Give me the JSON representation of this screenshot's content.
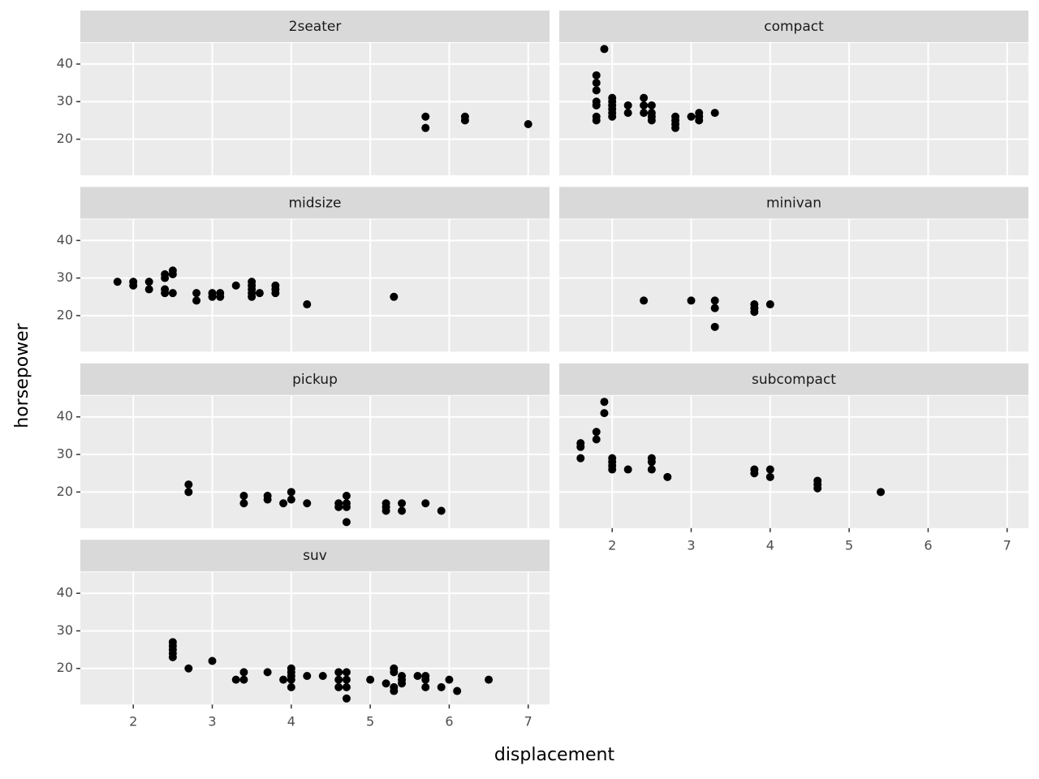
{
  "chart_data": {
    "type": "scatter",
    "x_label": "displacement",
    "y_label": "horsepower",
    "xlim": [
      1.33,
      7.27
    ],
    "ylim": [
      10.4,
      45.6
    ],
    "xticks": [
      2,
      3,
      4,
      5,
      6,
      7
    ],
    "yticks": [
      20,
      30,
      40
    ],
    "color": "#000000",
    "grid": true,
    "facets": [
      {
        "title": "2seater",
        "x": [
          5.7,
          5.7,
          6.2,
          6.2,
          7.0
        ],
        "y": [
          26,
          23,
          26,
          25,
          24
        ]
      },
      {
        "title": "compact",
        "x": [
          1.8,
          1.8,
          1.8,
          1.8,
          1.8,
          1.8,
          1.8,
          1.9,
          2.0,
          2.0,
          2.0,
          2.0,
          2.0,
          2.0,
          2.2,
          2.2,
          2.4,
          2.4,
          2.4,
          2.5,
          2.5,
          2.5,
          2.5,
          2.8,
          2.8,
          2.8,
          2.8,
          3.0,
          3.1,
          3.1,
          3.1,
          3.3
        ],
        "y": [
          25,
          26,
          29,
          30,
          33,
          35,
          37,
          44,
          26,
          27,
          28,
          29,
          30,
          31,
          27,
          29,
          27,
          29,
          31,
          25,
          26,
          27,
          29,
          23,
          24,
          25,
          26,
          26,
          25,
          26,
          27,
          27
        ]
      },
      {
        "title": "midsize",
        "x": [
          1.8,
          2.0,
          2.0,
          2.2,
          2.2,
          2.4,
          2.4,
          2.4,
          2.4,
          2.5,
          2.5,
          2.5,
          2.8,
          2.8,
          3.0,
          3.0,
          3.1,
          3.1,
          3.3,
          3.5,
          3.5,
          3.5,
          3.5,
          3.5,
          3.6,
          3.8,
          3.8,
          3.8,
          4.2,
          5.3
        ],
        "y": [
          29,
          28,
          29,
          27,
          29,
          26,
          27,
          30,
          31,
          26,
          31,
          32,
          24,
          26,
          25,
          26,
          26,
          25,
          28,
          25,
          26,
          27,
          28,
          29,
          26,
          26,
          27,
          28,
          23,
          25
        ]
      },
      {
        "title": "minivan",
        "x": [
          2.4,
          3.0,
          3.3,
          3.3,
          3.3,
          3.8,
          3.8,
          3.8,
          4.0
        ],
        "y": [
          24,
          24,
          22,
          24,
          17,
          22,
          21,
          23,
          23
        ]
      },
      {
        "title": "pickup",
        "x": [
          2.7,
          2.7,
          3.4,
          3.4,
          3.7,
          3.7,
          3.9,
          4.0,
          4.0,
          4.2,
          4.6,
          4.6,
          4.7,
          4.7,
          4.7,
          4.7,
          5.2,
          5.2,
          5.2,
          5.4,
          5.4,
          5.7,
          5.9
        ],
        "y": [
          20,
          22,
          17,
          19,
          18,
          19,
          17,
          18,
          20,
          17,
          16,
          17,
          12,
          16,
          17,
          19,
          15,
          16,
          17,
          15,
          17,
          17,
          15
        ]
      },
      {
        "title": "subcompact",
        "x": [
          1.6,
          1.6,
          1.6,
          1.8,
          1.8,
          1.9,
          1.9,
          2.0,
          2.0,
          2.0,
          2.0,
          2.2,
          2.5,
          2.5,
          2.5,
          2.7,
          3.8,
          3.8,
          4.0,
          4.0,
          4.6,
          4.6,
          4.6,
          5.4
        ],
        "y": [
          29,
          32,
          33,
          34,
          36,
          41,
          44,
          26,
          27,
          28,
          29,
          26,
          26,
          28,
          29,
          24,
          25,
          26,
          24,
          26,
          21,
          22,
          23,
          20
        ]
      },
      {
        "title": "suv",
        "x": [
          2.5,
          2.5,
          2.5,
          2.5,
          2.5,
          2.7,
          3.0,
          3.3,
          3.4,
          3.4,
          3.7,
          3.9,
          4.0,
          4.0,
          4.0,
          4.0,
          4.0,
          4.2,
          4.4,
          4.6,
          4.6,
          4.6,
          4.7,
          4.7,
          4.7,
          4.7,
          5.0,
          5.2,
          5.3,
          5.3,
          5.3,
          5.3,
          5.4,
          5.4,
          5.4,
          5.6,
          5.7,
          5.7,
          5.7,
          5.9,
          6.0,
          6.1,
          6.5
        ],
        "y": [
          23,
          24,
          25,
          26,
          27,
          20,
          22,
          17,
          17,
          19,
          19,
          17,
          15,
          17,
          18,
          19,
          20,
          18,
          18,
          15,
          17,
          19,
          12,
          15,
          17,
          19,
          17,
          16,
          14,
          15,
          19,
          20,
          16,
          17,
          18,
          18,
          15,
          17,
          18,
          15,
          17,
          14,
          17
        ]
      }
    ]
  }
}
